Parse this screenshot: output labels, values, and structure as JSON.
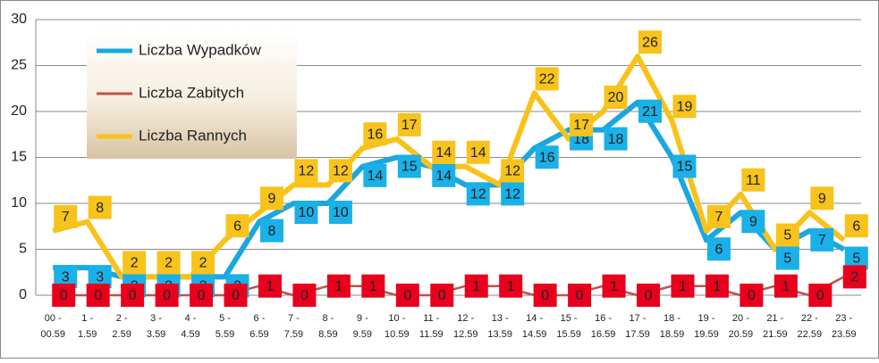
{
  "chart_data": {
    "type": "line",
    "categories": [
      [
        "00 -",
        "00.59"
      ],
      [
        "1 -",
        "1.59"
      ],
      [
        "2 -",
        "2.59"
      ],
      [
        "3 -",
        "3.59"
      ],
      [
        "4 -",
        "4.59"
      ],
      [
        "5 -",
        "5.59"
      ],
      [
        "6 -",
        "6.59"
      ],
      [
        "7 -",
        "7.59"
      ],
      [
        "8 -",
        "8.59"
      ],
      [
        "9 -",
        "9.59"
      ],
      [
        "10 -",
        "10.59"
      ],
      [
        "11 -",
        "11.59"
      ],
      [
        "12 -",
        "12.59"
      ],
      [
        "13 -",
        "13.59"
      ],
      [
        "14 -",
        "14.59"
      ],
      [
        "15 -",
        "15.59"
      ],
      [
        "16 -",
        "16.59"
      ],
      [
        "17 -",
        "17.59"
      ],
      [
        "18 -",
        "18.59"
      ],
      [
        "19 -",
        "19.59"
      ],
      [
        "20 -",
        "20.59"
      ],
      [
        "21 -",
        "21.59"
      ],
      [
        "22 -",
        "22.59"
      ],
      [
        "23 -",
        "23.59"
      ]
    ],
    "series": [
      {
        "name": "Liczba Wypadków",
        "color": "#1aa7e0",
        "label_color": "#1ab0e8",
        "values": [
          3,
          3,
          2,
          2,
          2,
          2,
          8,
          10,
          10,
          14,
          15,
          14,
          12,
          12,
          16,
          18,
          18,
          21,
          15,
          6,
          9,
          5,
          7,
          5
        ]
      },
      {
        "name": "Liczba Zabitych",
        "color": "#c0504d",
        "label_color": "#e8001c",
        "values": [
          0,
          0,
          0,
          0,
          0,
          0,
          1,
          0,
          1,
          1,
          0,
          0,
          1,
          1,
          0,
          0,
          1,
          0,
          1,
          1,
          0,
          1,
          0,
          2
        ]
      },
      {
        "name": "Liczba Rannych",
        "color": "#f9c21a",
        "label_color": "#f7c31c",
        "values": [
          7,
          8,
          2,
          2,
          2,
          6,
          9,
          12,
          12,
          16,
          17,
          14,
          14,
          12,
          22,
          17,
          20,
          26,
          19,
          7,
          11,
          5,
          9,
          6
        ]
      }
    ],
    "ylim": [
      0,
      30
    ],
    "yticks": [
      0,
      5,
      10,
      15,
      20,
      25,
      30
    ],
    "grid": true,
    "legend": "top-left"
  }
}
